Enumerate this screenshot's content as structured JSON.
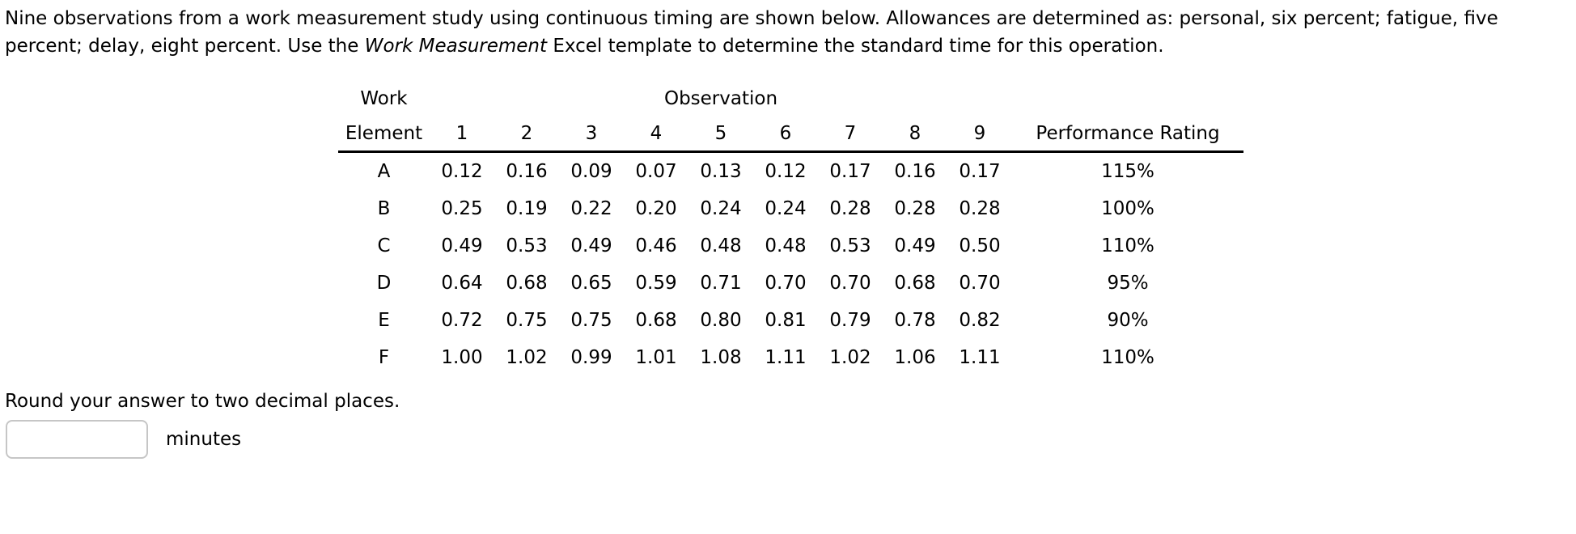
{
  "problem": {
    "line1": "Nine observations from a work measurement study using continuous timing are shown below. Allowances are determined as: personal, six percent; fatigue, five",
    "line2_pre": "percent; delay, eight percent. Use the ",
    "line2_italic": "Work Measurement",
    "line2_post": " Excel template to determine the standard time for this operation."
  },
  "table": {
    "work_header_line1": "Work",
    "work_header_line2": "Element",
    "observation_group_header": "Observation",
    "observation_numbers": [
      "1",
      "2",
      "3",
      "4",
      "5",
      "6",
      "7",
      "8",
      "9"
    ],
    "performance_header": "Performance Rating",
    "rows": [
      {
        "element": "A",
        "observations": [
          "0.12",
          "0.16",
          "0.09",
          "0.07",
          "0.13",
          "0.12",
          "0.17",
          "0.16",
          "0.17"
        ],
        "performance_rating": "115%"
      },
      {
        "element": "B",
        "observations": [
          "0.25",
          "0.19",
          "0.22",
          "0.20",
          "0.24",
          "0.24",
          "0.28",
          "0.28",
          "0.28"
        ],
        "performance_rating": "100%"
      },
      {
        "element": "C",
        "observations": [
          "0.49",
          "0.53",
          "0.49",
          "0.46",
          "0.48",
          "0.48",
          "0.53",
          "0.49",
          "0.50"
        ],
        "performance_rating": "110%"
      },
      {
        "element": "D",
        "observations": [
          "0.64",
          "0.68",
          "0.65",
          "0.59",
          "0.71",
          "0.70",
          "0.70",
          "0.68",
          "0.70"
        ],
        "performance_rating": "95%"
      },
      {
        "element": "E",
        "observations": [
          "0.72",
          "0.75",
          "0.75",
          "0.68",
          "0.80",
          "0.81",
          "0.79",
          "0.78",
          "0.82"
        ],
        "performance_rating": "90%"
      },
      {
        "element": "F",
        "observations": [
          "1.00",
          "1.02",
          "0.99",
          "1.01",
          "1.08",
          "1.11",
          "1.02",
          "1.06",
          "1.11"
        ],
        "performance_rating": "110%"
      }
    ]
  },
  "answer": {
    "instruction": "Round your answer to two decimal places.",
    "input_value": "",
    "unit_label": "minutes",
    "text_color": "#000000",
    "input_border_color": "#c6c6c6"
  }
}
